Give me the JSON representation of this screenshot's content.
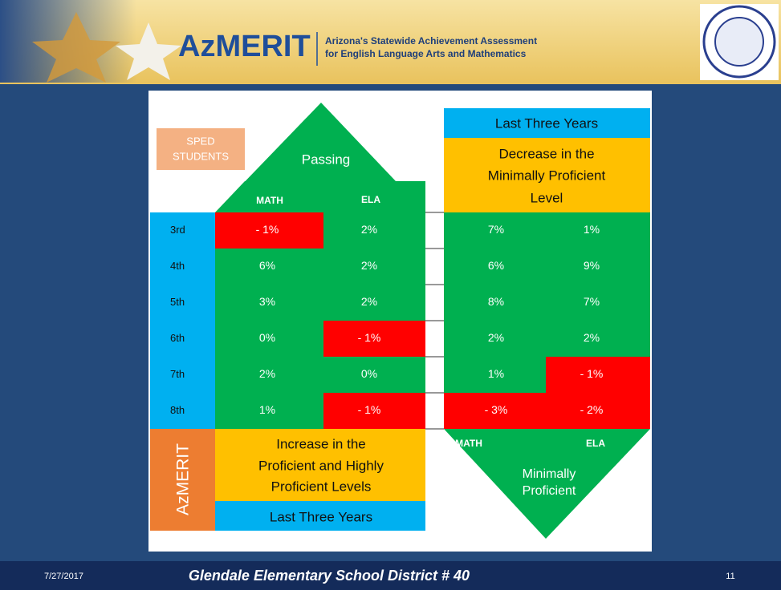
{
  "header": {
    "logo_text": "AzMERIT",
    "tagline_1": "Arizona's Statewide Achievement Assessment",
    "tagline_2": "for English Language Arts and Mathematics"
  },
  "slide": {
    "sped_label": [
      "SPED",
      "STUDENTS"
    ],
    "passing_label": "Passing",
    "passing_columns": [
      "MATH",
      "ELA"
    ],
    "top_right_period": "Last Three Years",
    "top_right_title": [
      "Decrease in the",
      "Minimally Proficient",
      "Level"
    ],
    "bottom_left_vertical": "AzMERIT",
    "bottom_left_title": [
      "Increase in the",
      "Proficient and Highly",
      "Proficient Levels"
    ],
    "bottom_left_period": "Last Three Years",
    "bottom_right_columns": [
      "MATH",
      "ELA"
    ],
    "bottom_right_label": [
      "Minimally",
      "Proficient"
    ],
    "table": {
      "rows": [
        {
          "grade": "3rd",
          "cells": [
            {
              "text": "- 1%",
              "color": "#ff0000"
            },
            {
              "text": "2%",
              "color": "#00b050"
            },
            {
              "text": "7%",
              "color": "#00b050"
            },
            {
              "text": "1%",
              "color": "#00b050"
            }
          ]
        },
        {
          "grade": "4th",
          "cells": [
            {
              "text": "6%",
              "color": "#00b050"
            },
            {
              "text": "2%",
              "color": "#00b050"
            },
            {
              "text": "6%",
              "color": "#00b050"
            },
            {
              "text": "9%",
              "color": "#00b050"
            }
          ]
        },
        {
          "grade": "5th",
          "cells": [
            {
              "text": "3%",
              "color": "#00b050"
            },
            {
              "text": "2%",
              "color": "#00b050"
            },
            {
              "text": "8%",
              "color": "#00b050"
            },
            {
              "text": "7%",
              "color": "#00b050"
            }
          ]
        },
        {
          "grade": "6th",
          "cells": [
            {
              "text": "0%",
              "color": "#00b050"
            },
            {
              "text": "- 1%",
              "color": "#ff0000"
            },
            {
              "text": "2%",
              "color": "#00b050"
            },
            {
              "text": "2%",
              "color": "#00b050"
            }
          ]
        },
        {
          "grade": "7th",
          "cells": [
            {
              "text": "2%",
              "color": "#00b050"
            },
            {
              "text": "0%",
              "color": "#00b050"
            },
            {
              "text": "1%",
              "color": "#00b050"
            },
            {
              "text": "- 1%",
              "color": "#ff0000"
            }
          ]
        },
        {
          "grade": "8th",
          "cells": [
            {
              "text": "1%",
              "color": "#00b050"
            },
            {
              "text": "- 1%",
              "color": "#ff0000"
            },
            {
              "text": "- 3%",
              "color": "#ff0000"
            },
            {
              "text": "- 2%",
              "color": "#ff0000"
            }
          ]
        }
      ]
    }
  },
  "footer": {
    "date": "7/27/2017",
    "title": "Glendale Elementary School District # 40",
    "page": "11"
  }
}
